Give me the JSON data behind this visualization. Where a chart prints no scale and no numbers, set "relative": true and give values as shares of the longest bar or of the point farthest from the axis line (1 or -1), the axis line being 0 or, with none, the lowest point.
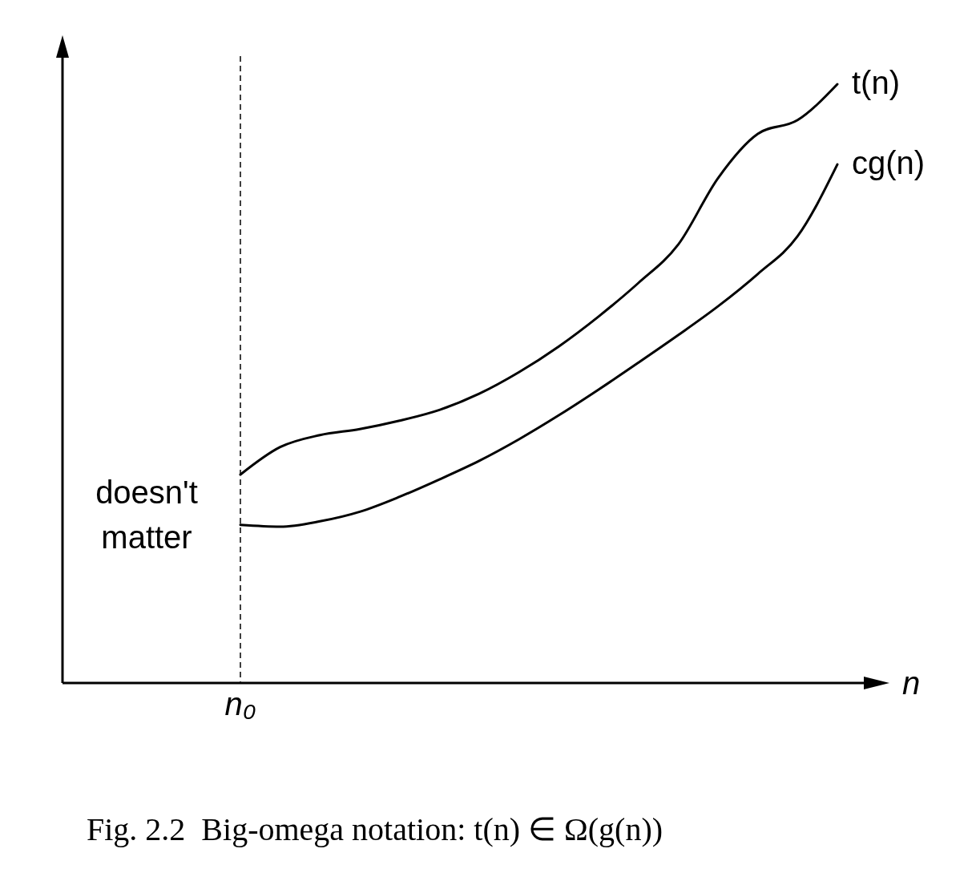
{
  "chart_data": {
    "type": "line",
    "relative": true,
    "title": "Fig. 2.2  Big-omega notation: t(n) ∈ Ω(g(n))",
    "xlabel": "n",
    "categories": [
      null,
      null,
      null,
      null,
      null,
      null,
      null,
      null,
      null,
      null,
      null,
      null,
      null,
      null,
      null,
      null
    ],
    "series": [
      {
        "name": "t(n)",
        "color": "#000000",
        "values": [
          0.348,
          0.394,
          0.414,
          0.424,
          0.438,
          0.456,
          0.483,
          0.519,
          0.562,
          0.612,
          0.668,
          0.732,
          0.843,
          0.917,
          0.94,
          1
        ]
      },
      {
        "name": "cg(n)",
        "color": "#000000",
        "values": [
          0.264,
          0.261,
          0.27,
          0.286,
          0.311,
          0.34,
          0.371,
          0.407,
          0.447,
          0.49,
          0.535,
          0.581,
          0.629,
          0.683,
          0.746,
          0.866
        ]
      }
    ],
    "ref_lines": [
      {
        "axis": "x",
        "label": "n₀",
        "line_style": "dashed",
        "color": "#000000"
      }
    ],
    "annotations": [
      "doesn't matter"
    ],
    "legend": false
  }
}
